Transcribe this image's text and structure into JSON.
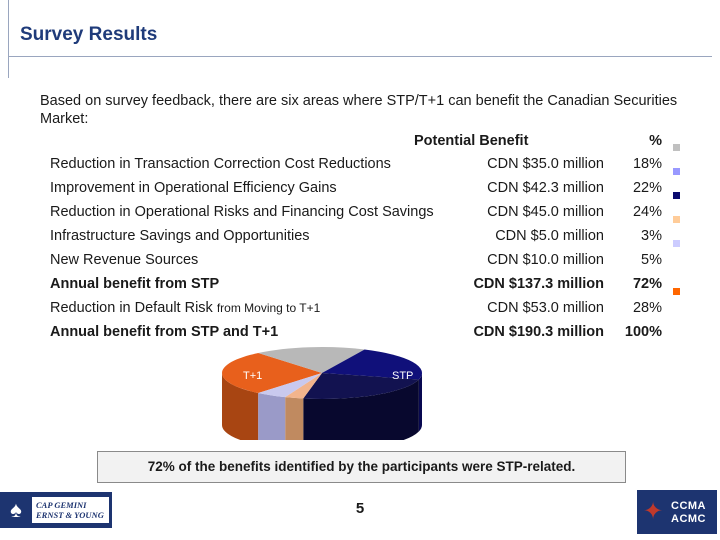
{
  "slide": {
    "title": "Survey Results",
    "intro": "Based on survey feedback, there are six areas where STP/T+1 can benefit the Canadian Securities Market:",
    "header_benefit": "Potential Benefit",
    "header_pct": "%",
    "rows": [
      {
        "label": "Reduction in Transaction Correction Cost Reductions",
        "label_small": "",
        "amount": "CDN $35.0 million",
        "pct": "18%",
        "color": "#9999ff"
      },
      {
        "label": "Improvement in Operational Efficiency Gains",
        "label_small": "",
        "amount": "CDN $42.3 million",
        "pct": "22%",
        "color": "#0a0a6e"
      },
      {
        "label": "Reduction in Operational Risks and Financing Cost Savings",
        "label_small": "",
        "amount": "CDN $45.0 million",
        "pct": "24%",
        "color": "#ffcc99"
      },
      {
        "label": "Infrastructure Savings and Opportunities",
        "label_small": "",
        "amount": "CDN $5.0 million",
        "pct": "3%",
        "color": "#ccccff"
      },
      {
        "label": "New Revenue Sources",
        "label_small": "",
        "amount": "CDN $10.0 million",
        "pct": "5%",
        "color": "#ff6600"
      },
      {
        "label": "Annual benefit from STP",
        "label_small": "",
        "amount": "CDN $137.3 million",
        "pct": "72%",
        "color": ""
      },
      {
        "label": "Reduction in Default Risk ",
        "label_small": "from Moving to T+1",
        "amount": "CDN $53.0 million",
        "pct": "28%",
        "color": ""
      },
      {
        "label": "Annual benefit from STP and T+1",
        "label_small": "",
        "amount": "CDN $190.3 million",
        "pct": "100%",
        "color": ""
      }
    ],
    "header_swatch_color": "#c0c0c0",
    "pie_labels": {
      "t1": "T+1",
      "stp": "STP"
    },
    "caption": "72% of the benefits identified by the participants were STP-related.",
    "page_number": "5"
  },
  "chart_data": {
    "type": "pie",
    "slices": [
      {
        "label": "T+1",
        "value": 28,
        "color": "#e8601c"
      },
      {
        "value": 18,
        "color": "#b8b8b8"
      },
      {
        "value": 22,
        "color": "#10107a"
      },
      {
        "value": 24,
        "color": "#121250"
      },
      {
        "value": 3,
        "color": "#f2b48c"
      },
      {
        "value": 5,
        "color": "#c9c9ee"
      }
    ],
    "side_colors": [
      "#a84512",
      "#8a8a8a",
      "#080850",
      "#08082e",
      "#c08a60",
      "#9a9ac8"
    ],
    "labels": [
      "T+1",
      "STP"
    ]
  },
  "logos": {
    "left_line1": "CAP GEMINI",
    "left_line2": "ERNST & YOUNG",
    "right_line1": "CCMA",
    "right_line2": "ACMC"
  }
}
